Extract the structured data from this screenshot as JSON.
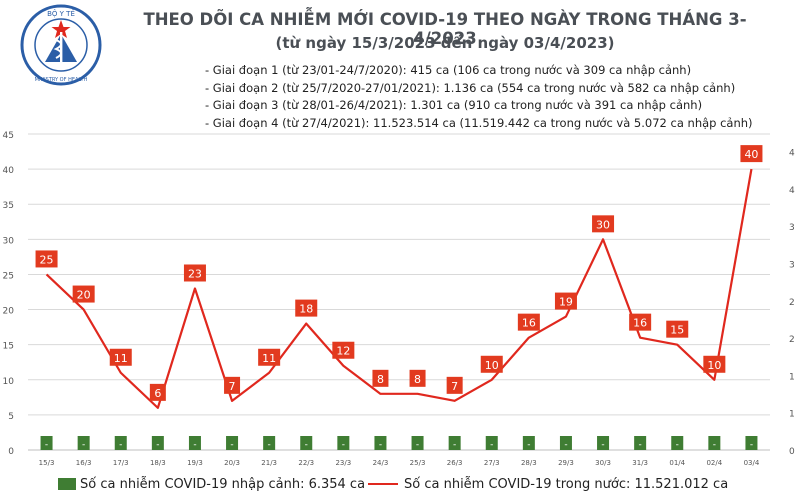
{
  "header": {
    "logo_text_top": "BỘ Y TẾ",
    "logo_text_bottom": "MINISTRY OF HEALTH",
    "title": "THEO DÕI CA NHIỄM MỚI COVID-19 THEO NGÀY TRONG THÁNG 3-4/2023",
    "subtitle": "(từ ngày 15/3/2023 đến ngày 03/4/2023)",
    "phases": [
      "- Giai đoạn 1 (từ 23/01-24/7/2020): 415 ca (106 ca trong nước và 309 ca nhập cảnh)",
      "- Giai đoạn 2 (từ 25/7/2020-27/01/2021): 1.136 ca (554 ca trong nước và 582 ca nhập cảnh)",
      "- Giai đoạn 3 (từ 28/01-26/4/2021): 1.301 ca (910 ca trong nước và 391 ca nhập cảnh)",
      "- Giai đoạn 4 (từ 27/4/2021): 11.523.514 ca (11.519.442 ca trong nước và 5.072 ca nhập cảnh)"
    ]
  },
  "colors": {
    "domestic_line": "#e0281e",
    "label_box": "#e23a1f",
    "imported_bar": "#3f7d33",
    "grid": "#d9d9d9",
    "axis_text": "#555555"
  },
  "chart_data": {
    "type": "line",
    "categories": [
      "15/3",
      "16/3",
      "17/3",
      "18/3",
      "19/3",
      "20/3",
      "21/3",
      "22/3",
      "23/3",
      "24/3",
      "25/3",
      "26/3",
      "27/3",
      "28/3",
      "29/3",
      "30/3",
      "31/3",
      "01/4",
      "02/4",
      "03/4"
    ],
    "series": [
      {
        "name": "Số ca nhiễm COVID-19 trong nước: 11.521.012 ca",
        "type": "line",
        "axis": "left",
        "values": [
          25,
          20,
          11,
          6,
          23,
          7,
          11,
          18,
          12,
          8,
          8,
          7,
          10,
          16,
          19,
          30,
          16,
          15,
          10,
          40
        ]
      },
      {
        "name": "Số ca nhiễm COVID-19 nhập cảnh: 6.354 ca",
        "type": "bar",
        "axis": "right",
        "values": [
          0,
          0,
          0,
          0,
          0,
          0,
          0,
          0,
          0,
          0,
          0,
          0,
          0,
          0,
          0,
          0,
          0,
          0,
          0,
          0
        ],
        "labels": [
          "-",
          "-",
          "-",
          "-",
          "-",
          "-",
          "-",
          "-",
          "-",
          "-",
          "-",
          "-",
          "-",
          "-",
          "-",
          "-",
          "-",
          "-",
          "-",
          "-"
        ]
      }
    ],
    "y_left": {
      "ylim": [
        0,
        45
      ],
      "ticks": [
        0,
        5,
        10,
        15,
        20,
        25,
        30,
        35,
        40,
        45
      ]
    },
    "y_right": {
      "ylim": [
        0,
        4.5
      ],
      "ticks": [
        "0",
        "1",
        "1",
        "2",
        "2",
        "3",
        "3",
        "4",
        "4"
      ]
    },
    "grid": true,
    "legend_position": "bottom"
  },
  "legend": {
    "imported": "Số ca nhiễm COVID-19 nhập cảnh: 6.354 ca",
    "domestic": "Số ca nhiễm COVID-19 trong nước: 11.521.012 ca"
  }
}
